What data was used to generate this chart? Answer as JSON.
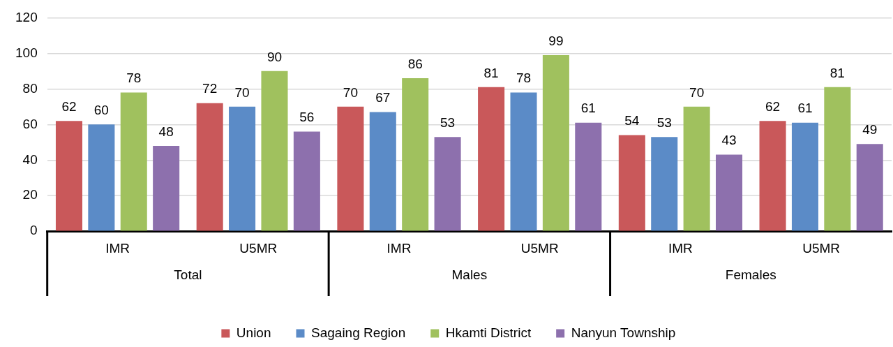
{
  "chart_data": {
    "type": "bar",
    "categories": [
      "IMR",
      "U5MR",
      "IMR",
      "U5MR",
      "IMR",
      "U5MR"
    ],
    "annotations": [
      "Total",
      "Males",
      "Females"
    ],
    "series": [
      {
        "name": "Union",
        "color": "#c9585a",
        "values": [
          62,
          72,
          70,
          81,
          54,
          62
        ]
      },
      {
        "name": "Sagaing Region",
        "color": "#5b8bc7",
        "values": [
          60,
          70,
          67,
          78,
          53,
          61
        ]
      },
      {
        "name": "Hkamti District",
        "color": "#a0c15e",
        "values": [
          78,
          90,
          86,
          99,
          70,
          81
        ]
      },
      {
        "name": "Nanyun Township",
        "color": "#8d70ad",
        "values": [
          48,
          56,
          53,
          61,
          43,
          49
        ]
      }
    ],
    "ylim": [
      0,
      120
    ],
    "yticks": [
      0,
      20,
      40,
      60,
      80,
      100,
      120
    ],
    "grid": "y",
    "legend": "bottom",
    "data_labels": true
  }
}
